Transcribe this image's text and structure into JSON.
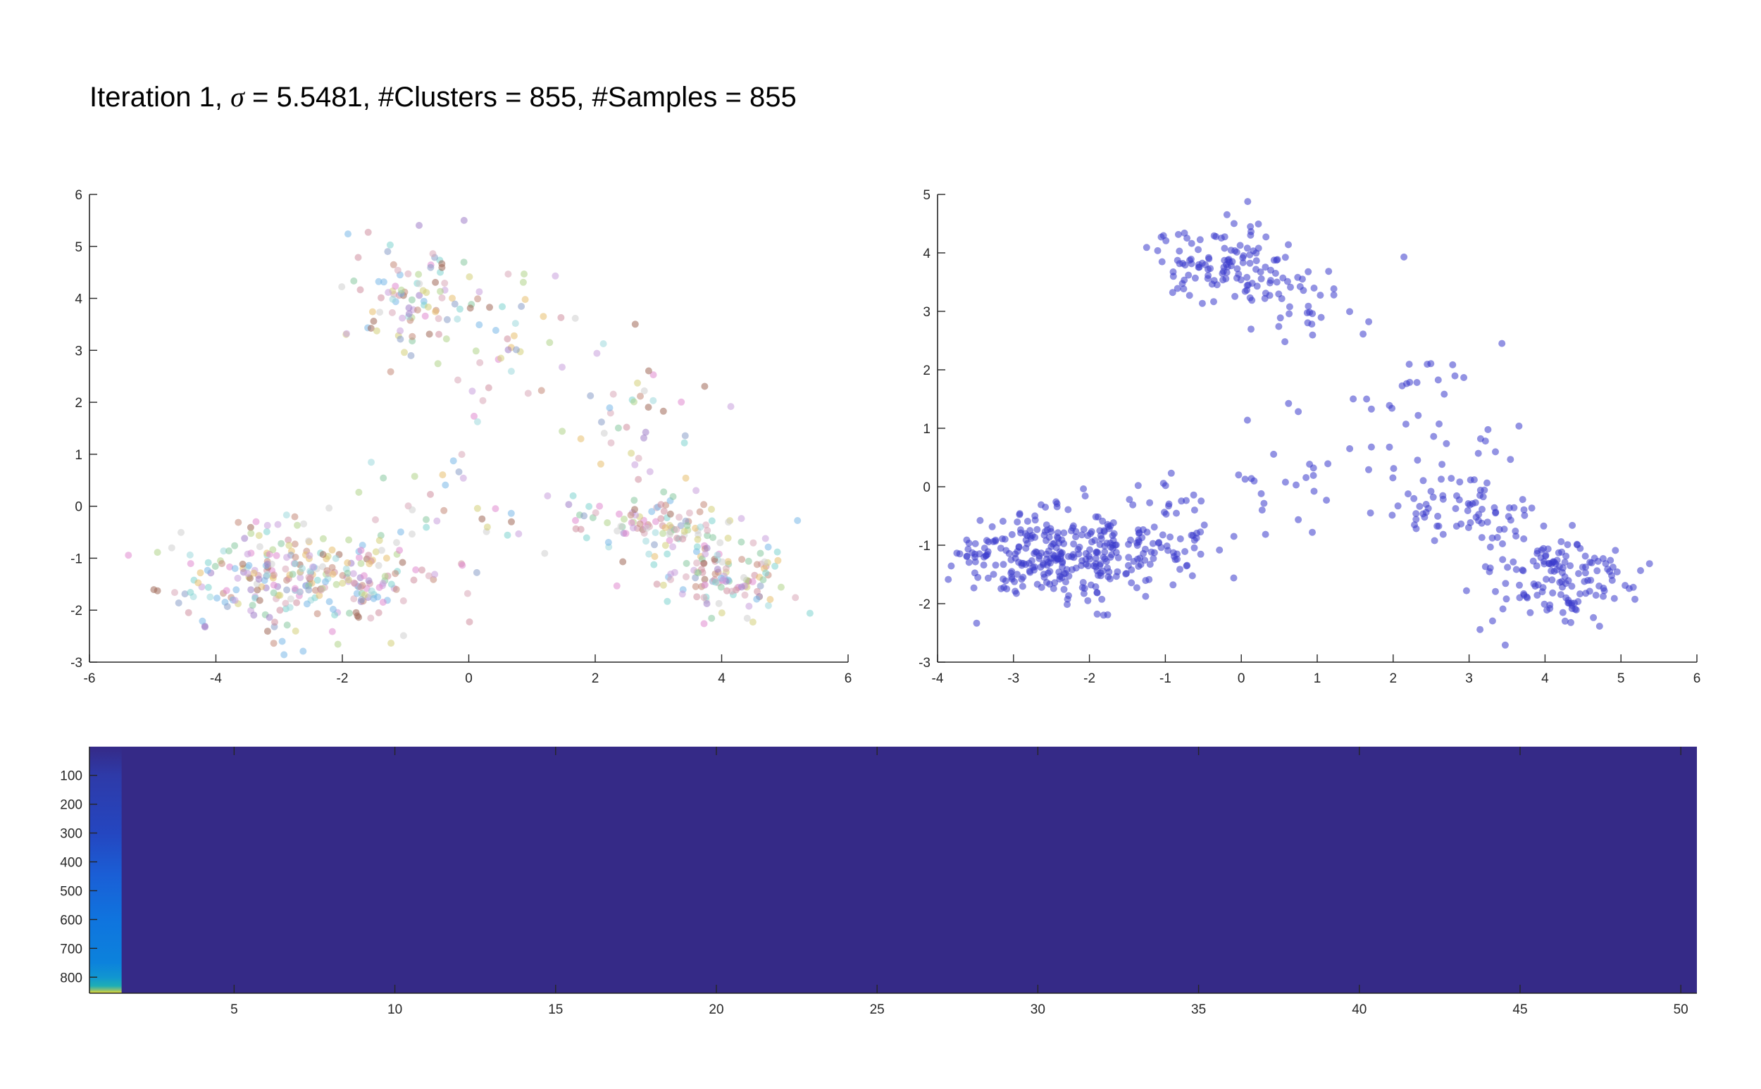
{
  "figure": {
    "title_prefix": "Iteration 1, ",
    "title_sigma_symbol": "σ",
    "title_suffix": " = 5.5481, #Clusters = 855, #Samples = 855"
  },
  "chart_data": [
    {
      "id": "left-scatter",
      "type": "scatter",
      "title": "",
      "xlabel": "",
      "ylabel": "",
      "xlim": [
        -6,
        6
      ],
      "ylim": [
        -3,
        6
      ],
      "xticks": [
        -6,
        -4,
        -2,
        0,
        2,
        4,
        6
      ],
      "yticks": [
        -3,
        -2,
        -1,
        0,
        1,
        2,
        3,
        4,
        5,
        6
      ],
      "grid": false,
      "marker_alpha": 0.55,
      "colors": [
        "#e08ad0",
        "#c9a0dc",
        "#9fd8dc",
        "#7fd3d0",
        "#d4cf7a",
        "#b0d48a",
        "#8a9fc8",
        "#c48a7a",
        "#a06a5a",
        "#d8a8b8",
        "#cfcfcf",
        "#7ab8e8",
        "#a080c8",
        "#e8c070",
        "#88c8a0",
        "#d090a0"
      ],
      "clusters": [
        {
          "cx": -2.6,
          "cy": -1.4,
          "sx": 1.0,
          "sy": 0.55,
          "n": 300
        },
        {
          "cx": -0.9,
          "cy": 4.0,
          "sx": 0.55,
          "sy": 0.55,
          "n": 90
        },
        {
          "cx": 0.6,
          "cy": 3.2,
          "sx": 0.6,
          "sy": 0.7,
          "n": 40
        },
        {
          "cx": 2.6,
          "cy": 1.6,
          "sx": 0.7,
          "sy": 0.8,
          "n": 40
        },
        {
          "cx": 2.8,
          "cy": -0.4,
          "sx": 0.6,
          "sy": 0.3,
          "n": 90
        },
        {
          "cx": 4.1,
          "cy": -1.3,
          "sx": 0.55,
          "sy": 0.45,
          "n": 130
        },
        {
          "cx": 0.3,
          "cy": 0.0,
          "sx": 0.8,
          "sy": 0.6,
          "n": 30
        }
      ]
    },
    {
      "id": "right-scatter",
      "type": "scatter",
      "title": "",
      "xlabel": "",
      "ylabel": "",
      "xlim": [
        -4,
        6
      ],
      "ylim": [
        -3,
        5
      ],
      "xticks": [
        -4,
        -3,
        -2,
        -1,
        0,
        1,
        2,
        3,
        4,
        5,
        6
      ],
      "yticks": [
        -3,
        -2,
        -1,
        0,
        1,
        2,
        3,
        4,
        5
      ],
      "grid": false,
      "marker_color": "#3b3bcc",
      "marker_alpha": 0.55,
      "clusters": [
        {
          "cx": -2.4,
          "cy": -1.2,
          "sx": 0.75,
          "sy": 0.35,
          "n": 320
        },
        {
          "cx": -1.0,
          "cy": -0.8,
          "sx": 0.35,
          "sy": 0.4,
          "n": 40
        },
        {
          "cx": -0.2,
          "cy": 3.9,
          "sx": 0.45,
          "sy": 0.35,
          "n": 110
        },
        {
          "cx": 0.8,
          "cy": 3.3,
          "sx": 0.4,
          "sy": 0.4,
          "n": 40
        },
        {
          "cx": 2.5,
          "cy": 1.2,
          "sx": 0.55,
          "sy": 0.6,
          "n": 40
        },
        {
          "cx": 2.9,
          "cy": -0.4,
          "sx": 0.5,
          "sy": 0.3,
          "n": 70
        },
        {
          "cx": 4.2,
          "cy": -1.5,
          "sx": 0.5,
          "sy": 0.35,
          "n": 140
        },
        {
          "cx": 0.3,
          "cy": 0.0,
          "sx": 0.6,
          "sy": 0.6,
          "n": 25
        }
      ]
    },
    {
      "id": "heatmap",
      "type": "heatmap",
      "title": "",
      "xlabel": "",
      "ylabel": "",
      "xlim": [
        0.5,
        50.5
      ],
      "ylim": [
        0.5,
        855.5
      ],
      "xticks": [
        5,
        10,
        15,
        20,
        25,
        30,
        35,
        40,
        45,
        50
      ],
      "yticks": [
        100,
        200,
        300,
        400,
        500,
        600,
        700,
        800
      ],
      "columns": 50,
      "rows": 855,
      "background_color": "#352a87",
      "first_column_gradient": [
        {
          "row": 1,
          "color": "#352a87"
        },
        {
          "row": 100,
          "color": "#2e3aa8"
        },
        {
          "row": 300,
          "color": "#2446c0"
        },
        {
          "row": 450,
          "color": "#1a5fd6"
        },
        {
          "row": 600,
          "color": "#0f74de"
        },
        {
          "row": 750,
          "color": "#0c82dc"
        },
        {
          "row": 800,
          "color": "#1196d0"
        },
        {
          "row": 830,
          "color": "#1eaeb4"
        },
        {
          "row": 845,
          "color": "#8cc070"
        },
        {
          "row": 855,
          "color": "#f8e325"
        }
      ]
    }
  ]
}
